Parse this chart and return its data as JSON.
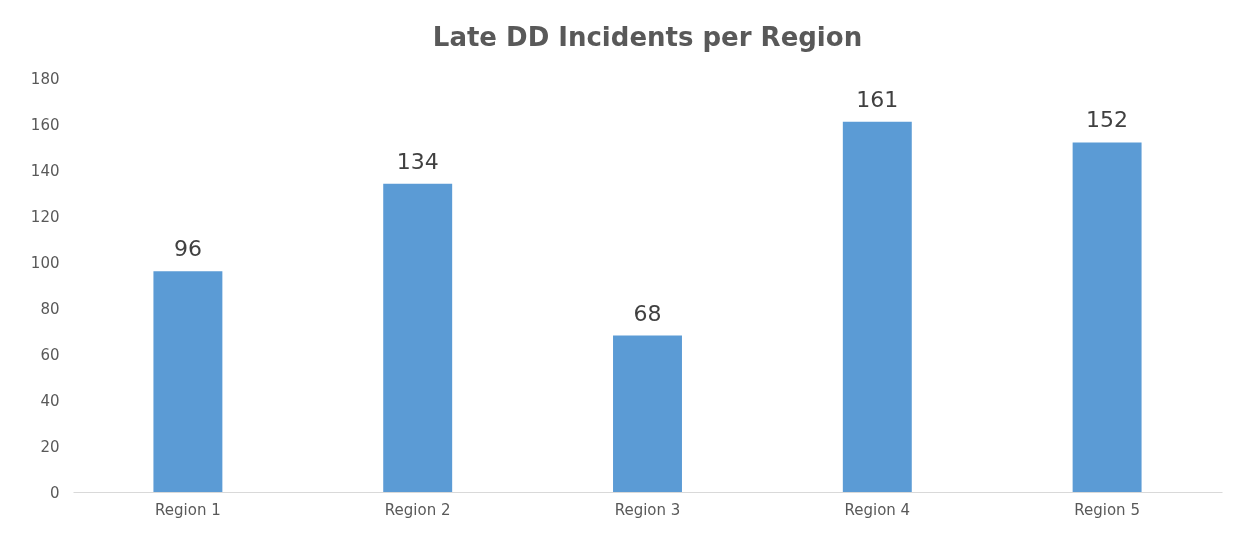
{
  "chart_data": {
    "type": "bar",
    "title": "Late DD Incidents per Region",
    "categories": [
      "Region 1",
      "Region 2",
      "Region 3",
      "Region 4",
      "Region 5"
    ],
    "values": [
      96,
      134,
      68,
      161,
      152
    ],
    "color": "#5b9bd5",
    "ylim": [
      0,
      180
    ],
    "yticks": [
      0,
      20,
      40,
      60,
      80,
      100,
      120,
      140,
      160,
      180
    ],
    "data_labels": true
  }
}
